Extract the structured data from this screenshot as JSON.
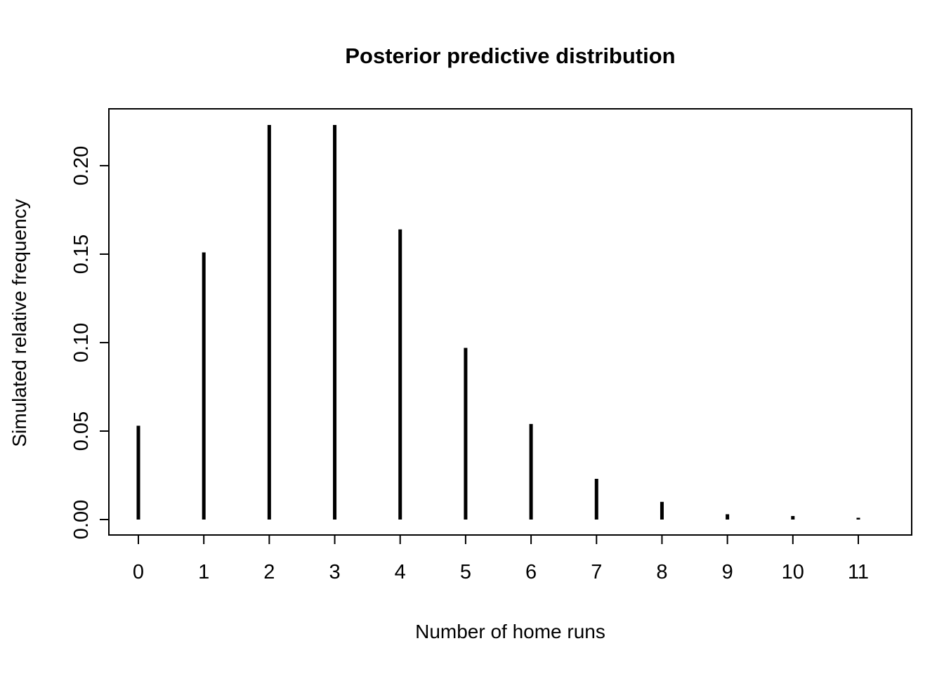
{
  "chart_data": {
    "type": "bar",
    "bar_style": "needle-spikes (R type='h')",
    "title": "Posterior predictive distribution",
    "xlabel": "Number of home runs",
    "ylabel": "Simulated relative frequency",
    "categories": [
      0,
      1,
      2,
      3,
      4,
      5,
      6,
      7,
      8,
      9,
      10,
      11
    ],
    "values": [
      0.053,
      0.151,
      0.223,
      0.223,
      0.164,
      0.097,
      0.054,
      0.023,
      0.01,
      0.003,
      0.002,
      0.001
    ],
    "x_tick_labels": [
      "0",
      "1",
      "2",
      "3",
      "4",
      "5",
      "6",
      "7",
      "8",
      "9",
      "10",
      "11"
    ],
    "y_ticks": [
      0.0,
      0.05,
      0.1,
      0.15,
      0.2
    ],
    "y_tick_labels": [
      "0.00",
      "0.05",
      "0.10",
      "0.15",
      "0.20"
    ],
    "xlim": [
      0,
      11
    ],
    "ylim": [
      0,
      0.223
    ],
    "grid": false,
    "legend": "none",
    "colors": {
      "spike": "#000000",
      "axis": "#000000",
      "background": "#ffffff"
    }
  }
}
